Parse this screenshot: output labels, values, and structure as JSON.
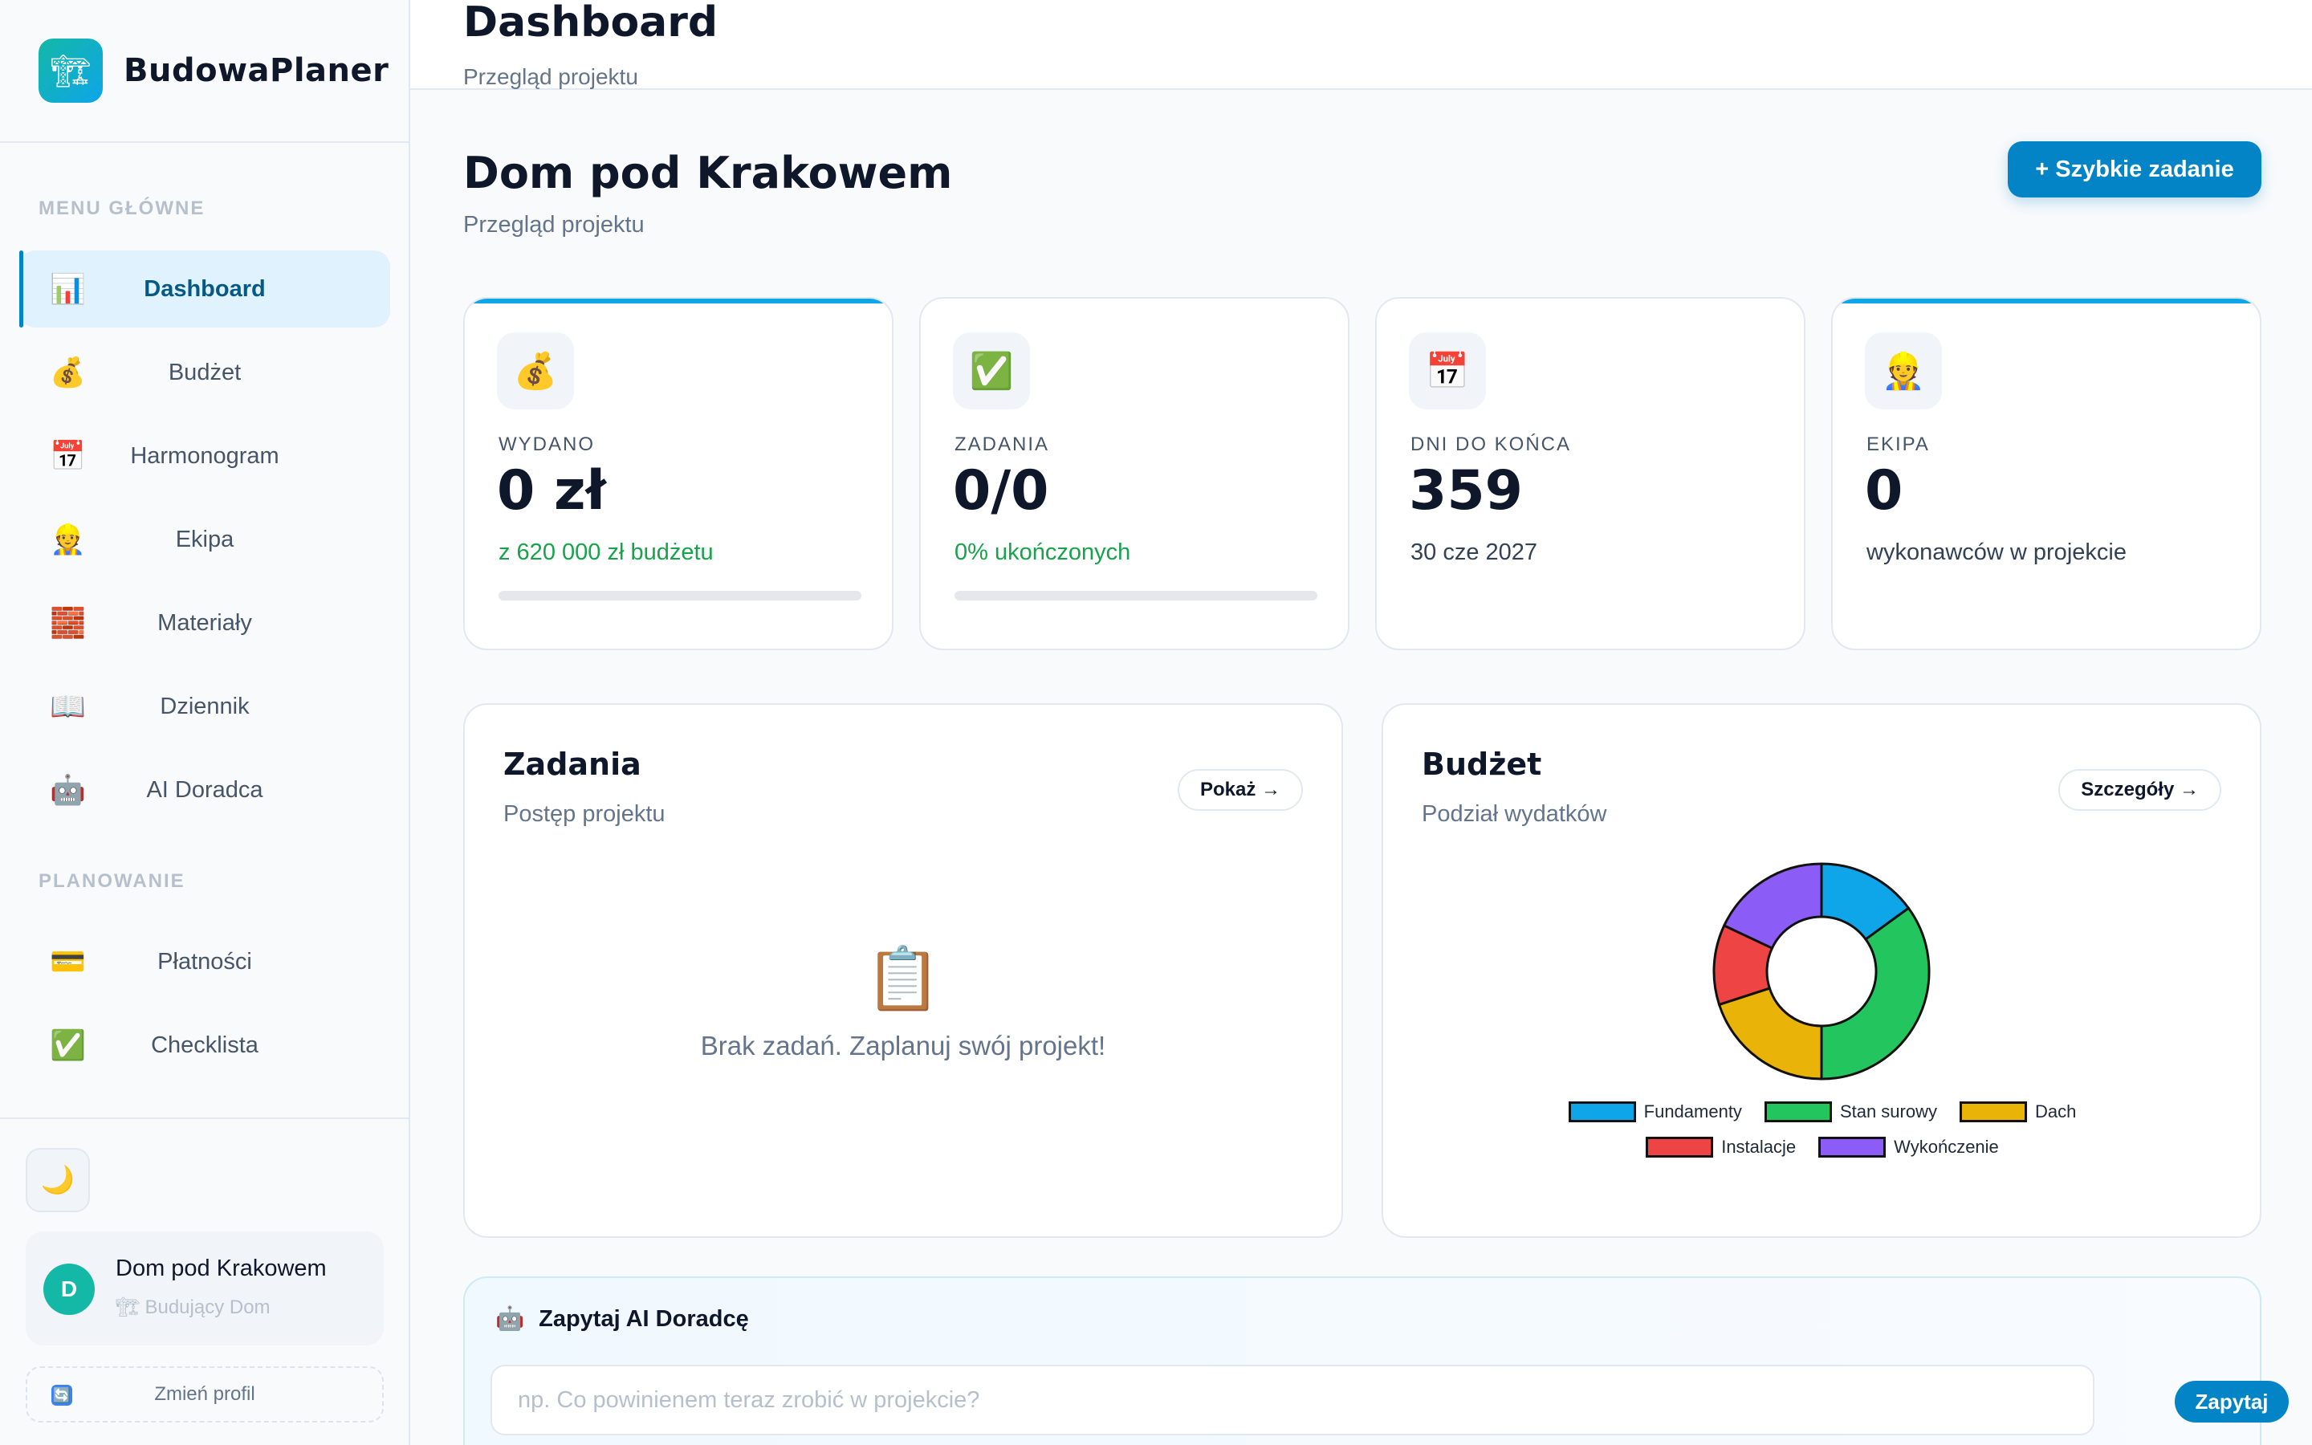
{
  "app": {
    "name": "BudowaPlaner",
    "logo_icon": "🏗"
  },
  "sidebar": {
    "section_main": "MENU GŁÓWNE",
    "section_planning": "PLANOWANIE",
    "items": [
      {
        "label": "Dashboard",
        "icon": "📊"
      },
      {
        "label": "Budżet",
        "icon": "💰"
      },
      {
        "label": "Harmonogram",
        "icon": "📅"
      },
      {
        "label": "Ekipa",
        "icon": "👷"
      },
      {
        "label": "Materiały",
        "icon": "🧱"
      },
      {
        "label": "Dziennik",
        "icon": "📖"
      },
      {
        "label": "AI Doradca",
        "icon": "🤖"
      }
    ],
    "planning_items": [
      {
        "label": "Płatności",
        "icon": "💳"
      },
      {
        "label": "Checklista",
        "icon": "✅"
      }
    ],
    "theme_icon": "🌙",
    "profile": {
      "initial": "D",
      "name": "Dom pod Krakowem",
      "role_icon": "🏗",
      "role": "Budujący Dom"
    },
    "switch_profile": "Zmień profil",
    "switch_icon": "🔄"
  },
  "topbar": {
    "title": "Dashboard",
    "subtitle": "Przegląd projektu"
  },
  "project": {
    "title": "Dom pod Krakowem",
    "subtitle": "Przegląd projektu",
    "quick_task_label": "+ Szybkie zadanie"
  },
  "stats": [
    {
      "icon": "💰",
      "label": "WYDANO",
      "value": "0 zł",
      "note": "z 620 000 zł budżetu",
      "progress": 0
    },
    {
      "icon": "✅",
      "label": "ZADANIA",
      "value": "0/0",
      "note": "0% ukończonych",
      "progress": 0
    },
    {
      "icon": "📅",
      "label": "DNI DO KOŃCA",
      "value": "359",
      "note": "30 cze 2027"
    },
    {
      "icon": "👷",
      "label": "EKIPA",
      "value": "0",
      "note": "wykonawców w projekcie"
    }
  ],
  "tasks_panel": {
    "title": "Zadania",
    "subtitle": "Postęp projektu",
    "button": "Pokaż →",
    "empty_icon": "📋",
    "empty_text": "Brak zadań. Zaplanuj swój projekt!"
  },
  "budget_panel": {
    "title": "Budżet",
    "subtitle": "Podział wydatków",
    "button": "Szczegóły →"
  },
  "chart_data": {
    "type": "pie",
    "categories": [
      "Fundamenty",
      "Stan surowy",
      "Dach",
      "Instalacje",
      "Wykończenie"
    ],
    "values": [
      15,
      35,
      20,
      12,
      18
    ],
    "colors": [
      "#0ea5e9",
      "#22c55e",
      "#eab308",
      "#ef4444",
      "#8b5cf6"
    ],
    "legend": "bottom"
  },
  "ai": {
    "icon": "🤖",
    "title": "Zapytaj AI Doradcę",
    "placeholder": "np. Co powinienem teraz zrobić w projekcie?",
    "button": "Zapytaj"
  }
}
